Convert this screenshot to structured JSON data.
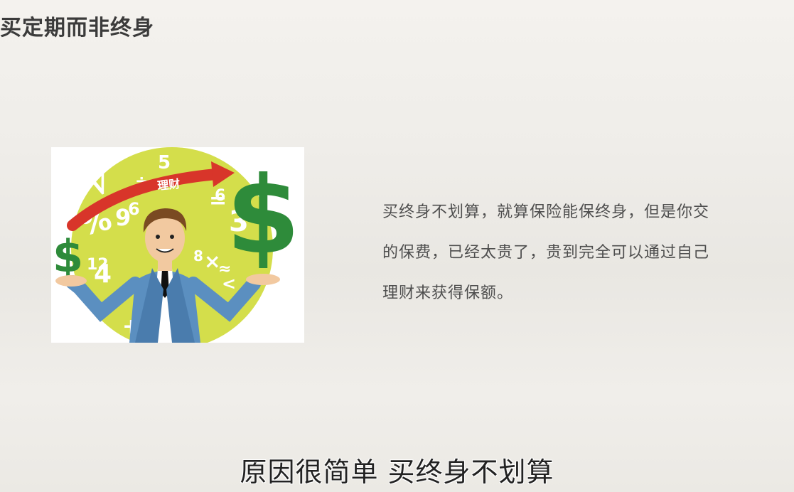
{
  "slide": {
    "title": "买定期而非终身",
    "body_lines": [
      "买终身不划算，就算保险能保终身，但是你交",
      "的保费，已经太贵了，贵到完全可以通过自己",
      "理财来获得保额。"
    ],
    "subtitle": "原因很简单 买终身不划算"
  },
  "illustration": {
    "arrow_label": "理财",
    "dollar_symbol": "$",
    "floating_symbols": [
      "5",
      "%",
      "9",
      "3",
      "8",
      "12",
      "4",
      "6",
      "+",
      "×",
      "÷",
      "=",
      "√"
    ],
    "colors": {
      "circle": "#d4de4b",
      "dollar": "#2e8b3a",
      "arrow": "#d8352a",
      "suit": "#5b8fc0",
      "hair": "#7a4a22"
    }
  }
}
